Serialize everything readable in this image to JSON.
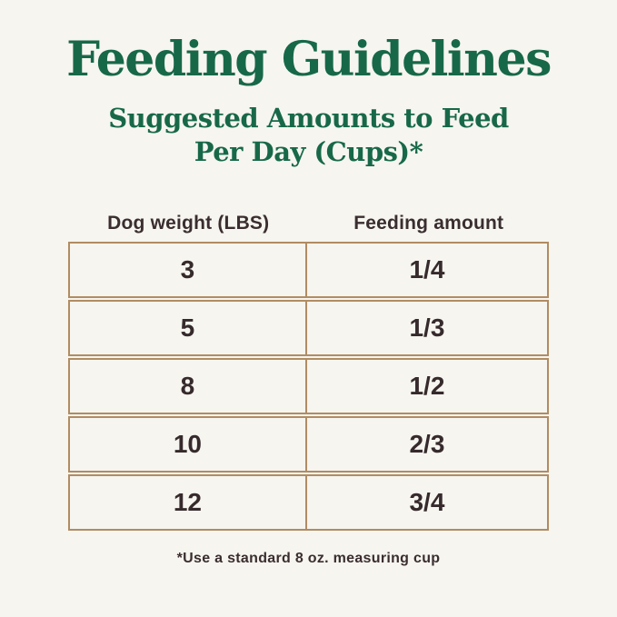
{
  "page": {
    "title": "Feeding Guidelines",
    "subtitle_lines": [
      "Suggested Amounts to Feed",
      "Per Day (Cups)*"
    ],
    "footnote": "*Use a standard 8 oz. measuring cup",
    "colors": {
      "background": "#f6f5ef",
      "heading_green": "#176849",
      "table_border_tan": "#b18c63",
      "text_dark": "#3a2d30"
    }
  },
  "table": {
    "columns": [
      "Dog weight (LBS)",
      "Feeding amount"
    ],
    "rows": [
      {
        "weight": "3",
        "amount": "1/4"
      },
      {
        "weight": "5",
        "amount": "1/3"
      },
      {
        "weight": "8",
        "amount": "1/2"
      },
      {
        "weight": "10",
        "amount": "2/3"
      },
      {
        "weight": "12",
        "amount": "3/4"
      }
    ]
  },
  "chart_data": {
    "type": "table",
    "title": "Feeding Guidelines",
    "subtitle": "Suggested Amounts to Feed Per Day (Cups)*",
    "columns": [
      "Dog weight (LBS)",
      "Feeding amount"
    ],
    "rows": [
      [
        "3",
        "1/4"
      ],
      [
        "5",
        "1/3"
      ],
      [
        "8",
        "1/2"
      ],
      [
        "10",
        "2/3"
      ],
      [
        "12",
        "3/4"
      ]
    ],
    "footnote": "*Use a standard 8 oz. measuring cup"
  }
}
